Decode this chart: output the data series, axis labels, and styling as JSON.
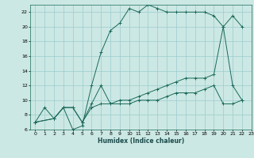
{
  "xlabel": "Humidex (Indice chaleur)",
  "bg_color": "#cce8e4",
  "grid_color": "#99cccc",
  "line_color": "#1a6a5a",
  "xlim": [
    -0.5,
    23
  ],
  "ylim": [
    6,
    23
  ],
  "xticks": [
    0,
    1,
    2,
    3,
    4,
    5,
    6,
    7,
    8,
    9,
    10,
    11,
    12,
    13,
    14,
    15,
    16,
    17,
    18,
    19,
    20,
    21,
    22,
    23
  ],
  "yticks": [
    6,
    8,
    10,
    12,
    14,
    16,
    18,
    20,
    22
  ],
  "line1_x": [
    0,
    1,
    2,
    3,
    4,
    5,
    6,
    7,
    8,
    9,
    10,
    11,
    12,
    13,
    14,
    15,
    16,
    17,
    18,
    19,
    20,
    21,
    22
  ],
  "line1_y": [
    7,
    9,
    7.5,
    9,
    6,
    6.5,
    12,
    16.5,
    19.5,
    20.5,
    22.5,
    22,
    23,
    22.5,
    22,
    22,
    22,
    22,
    22,
    21.5,
    20,
    21.5,
    20
  ],
  "line2_x": [
    0,
    2,
    3,
    4,
    5,
    6,
    7,
    8,
    9,
    10,
    11,
    12,
    13,
    14,
    15,
    16,
    17,
    18,
    19,
    20,
    21,
    22
  ],
  "line2_y": [
    7,
    7.5,
    9,
    9,
    7,
    9.5,
    12,
    9.5,
    10,
    10,
    10.5,
    11,
    11.5,
    12,
    12.5,
    13,
    13,
    13,
    13.5,
    20,
    12,
    10
  ],
  "line3_x": [
    0,
    2,
    3,
    4,
    5,
    6,
    7,
    8,
    9,
    10,
    11,
    12,
    13,
    14,
    15,
    16,
    17,
    18,
    19,
    20,
    21,
    22
  ],
  "line3_y": [
    7,
    7.5,
    9,
    9,
    7,
    9,
    9.5,
    9.5,
    9.5,
    9.5,
    10,
    10,
    10,
    10.5,
    11,
    11,
    11,
    11.5,
    12,
    9.5,
    9.5,
    10
  ]
}
